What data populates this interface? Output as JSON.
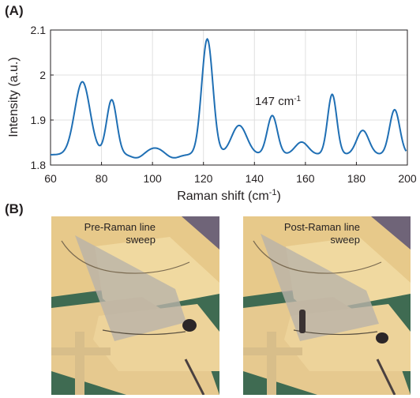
{
  "panel_a_label": "(A)",
  "panel_b_label": "(B)",
  "chart_data": {
    "type": "line",
    "xlabel_main": "Raman shift (cm",
    "xlabel_sup": "-1",
    "xlabel_close": ")",
    "ylabel": "Intensity (a.u.)",
    "xlim": [
      60,
      200
    ],
    "ylim": [
      1.8,
      2.1
    ],
    "xticks": [
      60,
      80,
      100,
      120,
      140,
      160,
      180,
      200
    ],
    "yticks": [
      1.8,
      1.9,
      2.0,
      2.1
    ],
    "ytick_labels": [
      "1.8",
      "1.9",
      "2",
      "2.1"
    ],
    "grid": true,
    "line_color": "#1f6fb4",
    "annotation": {
      "text": "147 cm",
      "sup": "-1",
      "x": 147,
      "y": 1.92
    },
    "baseline": 1.823,
    "peaks": [
      {
        "x": 72.5,
        "y": 1.985
      },
      {
        "x": 84,
        "y": 1.945
      },
      {
        "x": 101,
        "y": 1.838
      },
      {
        "x": 121.5,
        "y": 2.08
      },
      {
        "x": 134,
        "y": 1.888
      },
      {
        "x": 147,
        "y": 1.91
      },
      {
        "x": 158.5,
        "y": 1.851
      },
      {
        "x": 170.5,
        "y": 1.957
      },
      {
        "x": 182.5,
        "y": 1.877
      },
      {
        "x": 195,
        "y": 1.923
      }
    ]
  },
  "images": [
    {
      "caption_line1": "Pre-Raman line",
      "caption_line2": "sweep"
    },
    {
      "caption_line1": "Post-Raman line",
      "caption_line2": "sweep"
    }
  ]
}
